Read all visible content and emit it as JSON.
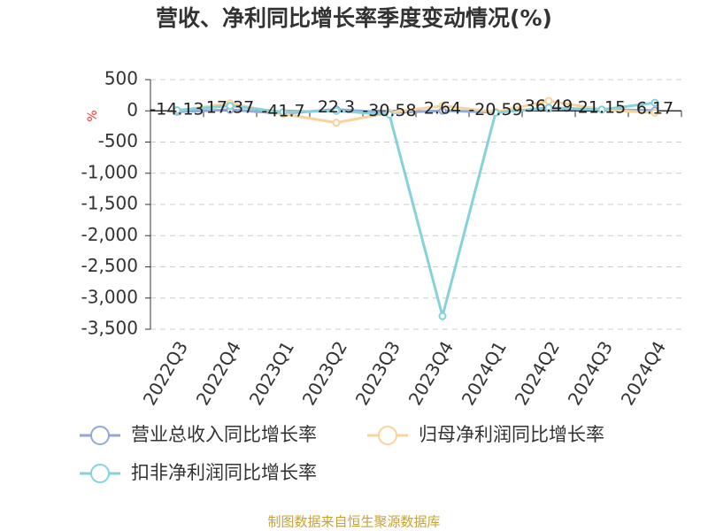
{
  "chart_data": {
    "type": "line",
    "title": "营收、净利同比增长率季度变动情况(%)",
    "y_label": "%",
    "categories": [
      "2022Q3",
      "2022Q4",
      "2023Q1",
      "2023Q2",
      "2023Q3",
      "2023Q4",
      "2024Q1",
      "2024Q2",
      "2024Q3",
      "2024Q4"
    ],
    "series": [
      {
        "name": "营业总收入同比增长率",
        "color": "#8fa9d8",
        "values": [
          -14.13,
          17.37,
          -41.7,
          22.3,
          -30.58,
          2.64,
          -20.59,
          36.49,
          21.15,
          6.17
        ]
      },
      {
        "name": "归母净利润同比增长率",
        "color": "#f8d39c",
        "values": [
          0,
          120,
          -50,
          -190,
          -30,
          80,
          -20,
          160,
          20,
          -30
        ]
      },
      {
        "name": "扣非净利润同比增长率",
        "color": "#86d2d9",
        "values": [
          10,
          80,
          -20,
          0,
          -60,
          -3290,
          -30,
          50,
          20,
          130
        ]
      }
    ],
    "ylim": [
      -3500,
      500
    ],
    "yticks": [
      500,
      0,
      -500,
      {
        "value": -1000,
        "label": "-1,000"
      },
      {
        "value": -1500,
        "label": "-1,500"
      },
      {
        "value": -2000,
        "label": "-2,000"
      },
      {
        "value": -2500,
        "label": "-2,500"
      },
      {
        "value": -3000,
        "label": "-3,000"
      },
      {
        "value": -3500,
        "label": "-3,500"
      }
    ],
    "grid": true,
    "source": "制图数据来自恒生聚源数据库"
  }
}
